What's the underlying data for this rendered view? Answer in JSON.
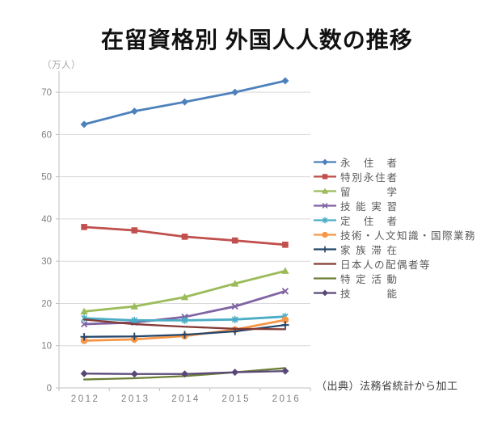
{
  "title": "在留資格別 外国人人数の推移",
  "unit_label": "（万人）",
  "source_note": "（出典）法務省統計から加工",
  "colors": {
    "grid": "#D9D9D9",
    "axis": "#BFBFBF",
    "tick_label": "#7F7F7F",
    "legend_text": "#595959",
    "title_text": "#111111",
    "unit_text": "#A6A6A6",
    "source_text": "#3D3D3D"
  },
  "chart_data": {
    "type": "line",
    "title": "在留資格別 外国人人数の推移",
    "xlabel": "",
    "ylabel": "（万人）",
    "categories": [
      "2012",
      "2013",
      "2014",
      "2015",
      "2016"
    ],
    "ylim": [
      0,
      75
    ],
    "yticks": [
      0,
      10,
      20,
      30,
      40,
      50,
      60,
      70
    ],
    "grid": true,
    "legend_position": "right",
    "series": [
      {
        "name": "永住者",
        "values": [
          62.4,
          65.5,
          67.7,
          70.0,
          72.7
        ],
        "color": "#4E81BC",
        "marker": "diamond"
      },
      {
        "name": "特別永住者",
        "values": [
          38.1,
          37.3,
          35.8,
          34.9,
          33.9
        ],
        "color": "#C0504D",
        "marker": "square"
      },
      {
        "name": "留学",
        "values": [
          18.1,
          19.3,
          21.5,
          24.7,
          27.7
        ],
        "color": "#9BBB59",
        "marker": "triangle"
      },
      {
        "name": "技能実習",
        "values": [
          15.1,
          15.5,
          16.8,
          19.3,
          22.9
        ],
        "color": "#8064A2",
        "marker": "x"
      },
      {
        "name": "定住者",
        "values": [
          16.5,
          16.0,
          16.0,
          16.2,
          16.9
        ],
        "color": "#4BACC6",
        "marker": "asterisk"
      },
      {
        "name": "技術・人文知識・国際業務",
        "values": [
          11.2,
          11.5,
          12.3,
          13.8,
          16.1
        ],
        "color": "#F79646",
        "marker": "circle"
      },
      {
        "name": "家族滞在",
        "values": [
          12.1,
          12.2,
          12.6,
          13.4,
          14.9
        ],
        "color": "#24466B",
        "marker": "plus"
      },
      {
        "name": "日本人の配偶者等",
        "values": [
          16.2,
          15.1,
          14.5,
          14.0,
          13.9
        ],
        "color": "#833A36",
        "marker": "none"
      },
      {
        "name": "特定活動",
        "values": [
          2.0,
          2.3,
          2.8,
          3.7,
          4.7
        ],
        "color": "#6B7F36",
        "marker": "none"
      },
      {
        "name": "技能",
        "values": [
          3.4,
          3.3,
          3.3,
          3.7,
          4.0
        ],
        "color": "#5A4778",
        "marker": "diamond"
      }
    ]
  }
}
